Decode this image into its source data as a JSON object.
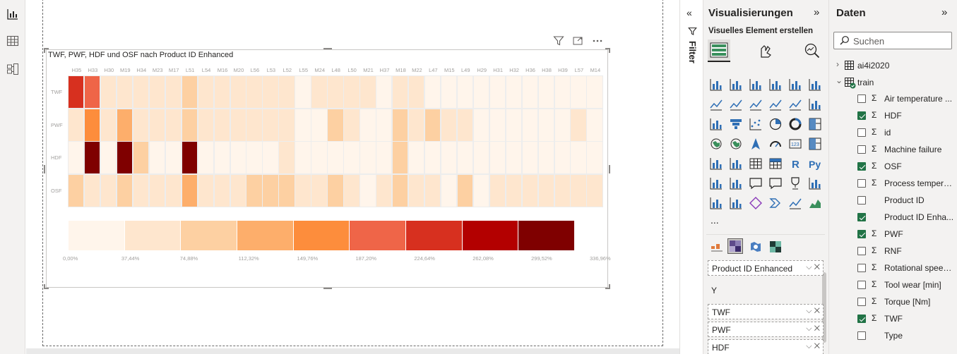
{
  "visual": {
    "title": "TWF, PWF, HDF und OSF nach Product ID Enhanced"
  },
  "chart_data": {
    "type": "heatmap",
    "title": "TWF, PWF, HDF und OSF nach Product ID Enhanced",
    "columns": [
      "H35",
      "H33",
      "H30",
      "M19",
      "H34",
      "M23",
      "M17",
      "L51",
      "L54",
      "M16",
      "M20",
      "L56",
      "L53",
      "L52",
      "L55",
      "M24",
      "L48",
      "L50",
      "M21",
      "H37",
      "M18",
      "M22",
      "L47",
      "M15",
      "L49",
      "H29",
      "H31",
      "H32",
      "H36",
      "H38",
      "H39",
      "L57",
      "M14"
    ],
    "rows": [
      "TWF",
      "PWF",
      "HDF",
      "OSF"
    ],
    "values_percent": [
      [
        240,
        200,
        70,
        70,
        60,
        60,
        60,
        80,
        60,
        50,
        60,
        50,
        45,
        40,
        35,
        40,
        45,
        40,
        40,
        35,
        45,
        40,
        30,
        30,
        20,
        10,
        10,
        10,
        10,
        10,
        10,
        10,
        10
      ],
      [
        70,
        150,
        70,
        140,
        60,
        50,
        50,
        80,
        45,
        40,
        45,
        50,
        40,
        40,
        30,
        10,
        90,
        40,
        30,
        30,
        100,
        40,
        80,
        70,
        40,
        10,
        30,
        10,
        20,
        10,
        20,
        70,
        10
      ],
      [
        20,
        300,
        10,
        336.96,
        100,
        10,
        10,
        330,
        10,
        10,
        10,
        20,
        10,
        70,
        10,
        10,
        10,
        10,
        10,
        10,
        110,
        10,
        10,
        10,
        10,
        10,
        10,
        10,
        10,
        10,
        10,
        10,
        10
      ],
      [
        90,
        70,
        50,
        90,
        50,
        50,
        60,
        140,
        60,
        60,
        70,
        80,
        90,
        90,
        60,
        60,
        100,
        50,
        30,
        40,
        90,
        40,
        60,
        10,
        100,
        10,
        70,
        50,
        40,
        50,
        40,
        50,
        40
      ]
    ],
    "legend_ticks": [
      "0,00%",
      "37,44%",
      "74,88%",
      "112,32%",
      "149,76%",
      "187,20%",
      "224,64%",
      "262,08%",
      "299,52%",
      "336,96%"
    ],
    "range": [
      0,
      336.96
    ],
    "colors": [
      "#fff5eb",
      "#fee6ce",
      "#fdd0a2",
      "#fdae6b",
      "#fd8d3c",
      "#ef6548",
      "#d7301f",
      "#b30000",
      "#7f0000"
    ]
  },
  "filter_pane": {
    "label": "Filter"
  },
  "viz_pane": {
    "title": "Visualisierungen",
    "subtitle": "Visuelles Element erstellen",
    "x_field": "Product ID Enhanced",
    "y_label": "Y",
    "y_fields": [
      "TWF",
      "PWF",
      "HDF"
    ],
    "more": "..."
  },
  "data_pane": {
    "title": "Daten",
    "search_placeholder": "Suchen",
    "tables": [
      "ai4i2020",
      "train"
    ],
    "fields": [
      {
        "name": "Air temperature ...",
        "checked": false,
        "sigma": true
      },
      {
        "name": "HDF",
        "checked": true,
        "sigma": true
      },
      {
        "name": "id",
        "checked": false,
        "sigma": true
      },
      {
        "name": "Machine failure",
        "checked": false,
        "sigma": true
      },
      {
        "name": "OSF",
        "checked": true,
        "sigma": true
      },
      {
        "name": "Process tempera...",
        "checked": false,
        "sigma": true
      },
      {
        "name": "Product ID",
        "checked": false,
        "sigma": false
      },
      {
        "name": "Product ID Enha...",
        "checked": true,
        "sigma": false
      },
      {
        "name": "PWF",
        "checked": true,
        "sigma": true
      },
      {
        "name": "RNF",
        "checked": false,
        "sigma": true
      },
      {
        "name": "Rotational speed...",
        "checked": false,
        "sigma": true
      },
      {
        "name": "Tool wear [min]",
        "checked": false,
        "sigma": true
      },
      {
        "name": "Torque [Nm]",
        "checked": false,
        "sigma": true
      },
      {
        "name": "TWF",
        "checked": true,
        "sigma": true
      },
      {
        "name": "Type",
        "checked": false,
        "sigma": false
      }
    ]
  },
  "icons": {
    "rail": [
      "report-view-icon",
      "table-view-icon",
      "model-view-icon"
    ],
    "toolbar": [
      "filter-icon",
      "focus-mode-icon",
      "more-options-icon"
    ]
  }
}
